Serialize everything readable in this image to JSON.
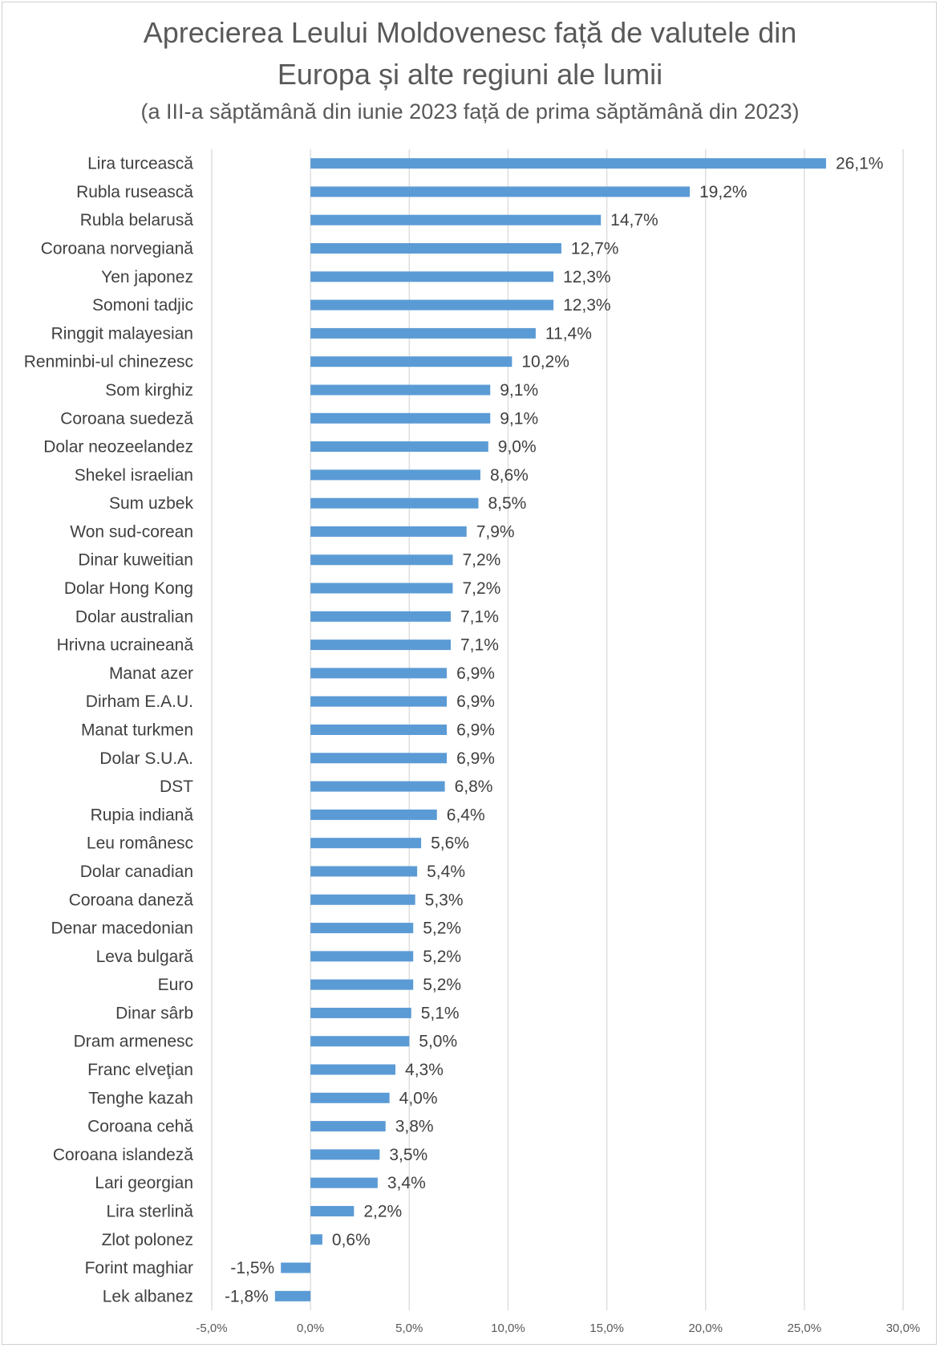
{
  "chart_data": {
    "type": "bar",
    "orientation": "horizontal",
    "title": "Aprecierea Leului Moldovenesc față de valutele din Europa și alte regiuni ale lumii",
    "title_line1": "Aprecierea Leului Moldovenesc față de valutele din",
    "title_line2": "Europa și alte regiuni ale lumii",
    "subtitle": "(a III-a săptămână din iunie 2023 față de prima săptămână din 2023)",
    "xlabel": "",
    "ylabel": "",
    "xlim": [
      -5,
      30
    ],
    "xticks": [
      -5,
      0,
      5,
      10,
      15,
      20,
      25,
      30
    ],
    "xtick_labels": [
      "-5,0%",
      "0,0%",
      "5,0%",
      "10,0%",
      "15,0%",
      "20,0%",
      "25,0%",
      "30,0%"
    ],
    "grid": true,
    "bar_color": "#5b9bd5",
    "categories": [
      "Lira turcească",
      "Rubla rusească",
      "Rubla belarusă",
      "Coroana norvegiană",
      "Yen japonez",
      "Somoni tadjic",
      "Ringgit malayesian",
      "Renminbi-ul chinezesc",
      "Som kirghiz",
      "Coroana suedeză",
      "Dolar neozeelandez",
      "Shekel israelian",
      "Sum uzbek",
      "Won sud-corean",
      "Dinar kuweitian",
      "Dolar Hong Kong",
      "Dolar australian",
      "Hrivna ucraineană",
      "Manat azer",
      "Dirham E.A.U.",
      "Manat turkmen",
      "Dolar S.U.A.",
      "DST",
      "Rupia indiană",
      "Leu românesc",
      "Dolar canadian",
      "Coroana daneză",
      "Denar macedonian",
      "Leva bulgară",
      "Euro",
      "Dinar sârb",
      "Dram armenesc",
      "Franc elveţian",
      "Tenghe kazah",
      "Coroana cehă",
      "Coroana islandeză",
      "Lari georgian",
      "Lira sterlină",
      "Zlot polonez",
      "Forint maghiar",
      "Lek albanez"
    ],
    "values": [
      26.1,
      19.2,
      14.7,
      12.7,
      12.3,
      12.3,
      11.4,
      10.2,
      9.1,
      9.1,
      9.0,
      8.6,
      8.5,
      7.9,
      7.2,
      7.2,
      7.1,
      7.1,
      6.9,
      6.9,
      6.9,
      6.9,
      6.8,
      6.4,
      5.6,
      5.4,
      5.3,
      5.2,
      5.2,
      5.2,
      5.1,
      5.0,
      4.3,
      4.0,
      3.8,
      3.5,
      3.4,
      2.2,
      0.6,
      -1.5,
      -1.8
    ],
    "value_labels": [
      "26,1%",
      "19,2%",
      "14,7%",
      "12,7%",
      "12,3%",
      "12,3%",
      "11,4%",
      "10,2%",
      "9,1%",
      "9,1%",
      "9,0%",
      "8,6%",
      "8,5%",
      "7,9%",
      "7,2%",
      "7,2%",
      "7,1%",
      "7,1%",
      "6,9%",
      "6,9%",
      "6,9%",
      "6,9%",
      "6,8%",
      "6,4%",
      "5,6%",
      "5,4%",
      "5,3%",
      "5,2%",
      "5,2%",
      "5,2%",
      "5,1%",
      "5,0%",
      "4,3%",
      "4,0%",
      "3,8%",
      "3,5%",
      "3,4%",
      "2,2%",
      "0,6%",
      "-1,5%",
      "-1,8%"
    ]
  }
}
